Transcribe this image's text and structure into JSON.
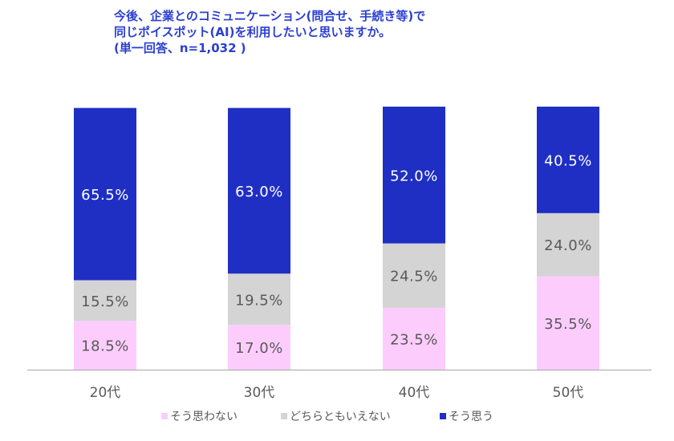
{
  "title_lines": [
    "今後、企業とのコミュニケーション(問合せ、手続き等)で",
    "同じポイスポット(AI)を利用したいと思いますか。",
    "(単一回答、n=1,032 )"
  ],
  "colors": {
    "title": "#2b3fd1",
    "agree": "#1f2fc4",
    "neutral": "#d4d4d4",
    "disagree": "#fccdfc",
    "axis": "#a6a6a6",
    "label_dark": "#595959",
    "label_light": "#ffffff"
  },
  "chart_data": {
    "type": "bar",
    "stacked": true,
    "percent_stacked": true,
    "categories": [
      "20代",
      "30代",
      "40代",
      "50代"
    ],
    "series": [
      {
        "name": "そう思わない",
        "values": [
          18.5,
          17.0,
          23.5,
          35.5
        ],
        "labels": [
          "18.5%",
          "17.0%",
          "23.5%",
          "35.5%"
        ],
        "color": "#fccdfc"
      },
      {
        "name": "どちらともいえない",
        "values": [
          15.5,
          19.5,
          24.5,
          24.0
        ],
        "labels": [
          "15.5%",
          "19.5%",
          "24.5%",
          "24.0%"
        ],
        "color": "#d4d4d4"
      },
      {
        "name": "そう思う",
        "values": [
          65.5,
          63.0,
          52.0,
          40.5
        ],
        "labels": [
          "65.5%",
          "63.0%",
          "52.0%",
          "40.5%"
        ],
        "color": "#1f2fc4"
      }
    ],
    "ylim": [
      0,
      100
    ],
    "legend_position": "bottom",
    "grid": false,
    "title": "今後、企業とのコミュニケーション(問合せ、手続き等)で 同じポイスポット(AI)を利用したいと思いますか。 (単一回答、n=1,032 )"
  }
}
